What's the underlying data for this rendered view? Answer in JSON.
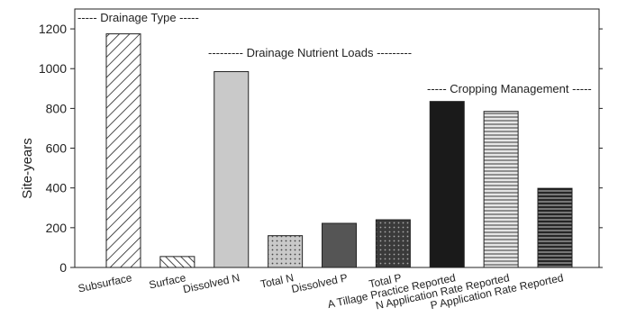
{
  "chart_data": {
    "type": "bar",
    "title": "",
    "xlabel": "",
    "ylabel": "Site-years",
    "ylim": [
      0,
      1300
    ],
    "yticks": [
      0,
      200,
      400,
      600,
      800,
      1000,
      1200
    ],
    "categories": [
      "Subsurface",
      "Surface",
      "Dissolved N",
      "Total N",
      "Dissolved P",
      "Total P",
      "A Tillage Practice Reported",
      "N Application Rate Reported",
      "P Application Rate Reported"
    ],
    "values": [
      1175,
      55,
      985,
      160,
      222,
      240,
      835,
      785,
      398
    ],
    "bar_styles": [
      "hatch-diag-wide",
      "hatch-diag-narrow",
      "solid-light-gray",
      "dots",
      "solid-dark-gray",
      "dots-dark",
      "solid-black",
      "horizontal-light",
      "horizontal-dark"
    ],
    "annotations": [
      "----- Drainage Type -----",
      "--------- Drainage Nutrient Loads ---------",
      "----- Cropping Management -----"
    ],
    "grid": false,
    "legend": "none"
  }
}
